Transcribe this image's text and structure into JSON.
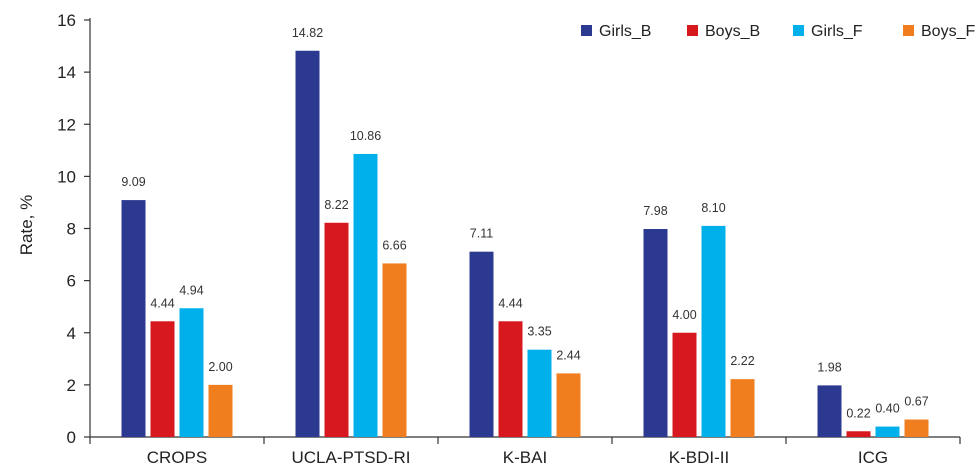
{
  "chart_data": {
    "type": "bar",
    "ylabel": "Rate, %",
    "xlabel": "",
    "title": "",
    "ylim": [
      0,
      16
    ],
    "yticks": [
      0,
      2,
      4,
      6,
      8,
      10,
      12,
      14,
      16
    ],
    "grid": false,
    "legend_position": "top-right",
    "categories": [
      "CROPS",
      "UCLA-PTSD-RI",
      "K-BAI",
      "K-BDI-II",
      "ICG"
    ],
    "series": [
      {
        "name": "Girls_B",
        "color": "#2b3990",
        "values": [
          9.09,
          14.82,
          7.11,
          7.98,
          1.98
        ],
        "labels": [
          "9.09",
          "14.82",
          "7.11",
          "7.98",
          "1.98"
        ]
      },
      {
        "name": "Boys_B",
        "color": "#d7191f",
        "values": [
          4.44,
          8.22,
          4.44,
          4.0,
          0.22
        ],
        "labels": [
          "4.44",
          "8.22",
          "4.44",
          "4.00",
          "0.22"
        ]
      },
      {
        "name": "Girls_F",
        "color": "#00b0eb",
        "values": [
          4.94,
          10.86,
          3.35,
          8.1,
          0.4
        ],
        "labels": [
          "4.94",
          "10.86",
          "3.35",
          "8.10",
          "0.40"
        ]
      },
      {
        "name": "Boys_F",
        "color": "#f07d1e",
        "values": [
          2.0,
          6.66,
          2.44,
          2.22,
          0.67
        ],
        "labels": [
          "2.00",
          "6.66",
          "2.44",
          "2.22",
          "0.67"
        ]
      }
    ]
  }
}
